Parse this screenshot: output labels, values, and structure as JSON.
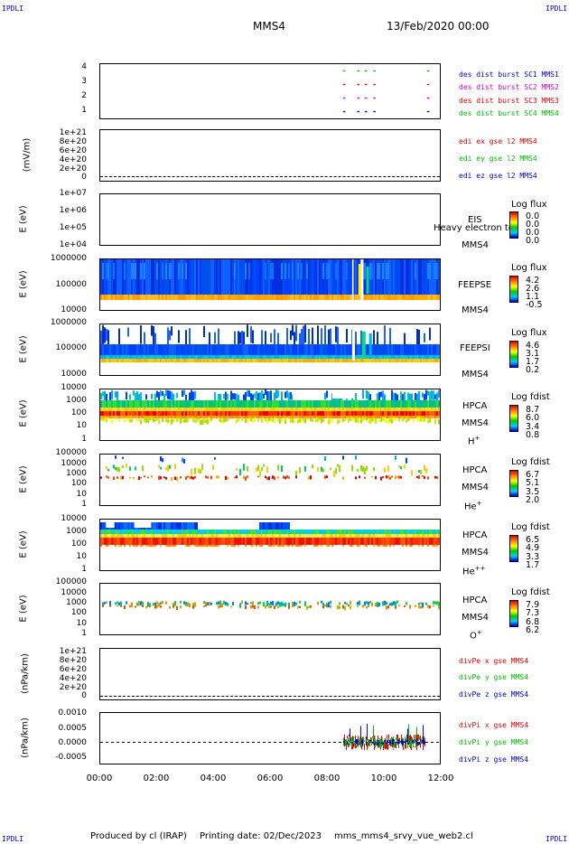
{
  "corners": {
    "tl": "IPDLI",
    "tr": "IPDLI",
    "bl": "IPDLI",
    "br": "IPDLI"
  },
  "header": {
    "spacecraft": "MMS4",
    "date": "13/Feb/2020 00:00"
  },
  "footer": {
    "producer": "Produced by cl (IRAP)",
    "printing": "Printing date: 02/Dec/2023",
    "script": "mms_mms4_srvy_vue_web2.cl"
  },
  "time_axis": {
    "ticks": [
      "00:00",
      "02:00",
      "04:00",
      "06:00",
      "08:00",
      "10:00",
      "12:00"
    ]
  },
  "colors": {
    "red": "#dd0000",
    "green": "#00bb00",
    "blue": "#0000cc",
    "magenta": "#cc00cc"
  },
  "chart_data": [
    {
      "type": "scatter",
      "name": "burst",
      "ylim": [
        0.5,
        4.5
      ],
      "yticks": [
        "4",
        "3",
        "2",
        "1"
      ],
      "legend": [
        {
          "text": "des dist burst SC1 MMS1",
          "color": "#0000cc"
        },
        {
          "text": "des dist burst SC2 MMS2",
          "color": "#cc00cc"
        },
        {
          "text": "des dist burst SC3 MMS3",
          "color": "#dd0000"
        },
        {
          "text": "des dist burst SC4 MMS4",
          "color": "#00bb00"
        }
      ],
      "series": [
        {
          "sc": 4,
          "color": "#00bb00",
          "x": [
            8.58,
            9.08,
            9.35,
            9.65,
            11.55
          ]
        },
        {
          "sc": 3,
          "color": "#dd0000",
          "x": [
            8.58,
            9.08,
            9.35,
            9.65,
            11.55
          ]
        },
        {
          "sc": 2,
          "color": "#cc00cc",
          "x": [
            8.58,
            9.08,
            9.35,
            9.65,
            11.55
          ]
        },
        {
          "sc": 1,
          "color": "#0000cc",
          "x": [
            8.58,
            9.08,
            9.35,
            9.65,
            11.55
          ]
        }
      ]
    },
    {
      "type": "line",
      "name": "edi",
      "ylabel": "(mV/m)",
      "yticks": [
        "1e+21",
        "8e+20",
        "6e+20",
        "4e+20",
        "2e+20",
        "0"
      ],
      "legend": [
        {
          "text": "edi ex gse l2 MMS4",
          "color": "#dd0000"
        },
        {
          "text": "edi ey gse l2 MMS4",
          "color": "#00bb00"
        },
        {
          "text": "edi ez gse l2 MMS4",
          "color": "#0000cc"
        }
      ]
    },
    {
      "type": "heatmap",
      "name": "eis",
      "ylabel": "E (eV)",
      "yticks": [
        "1e+07",
        "1e+06",
        "1e+05",
        "1e+04"
      ],
      "instrument": "EIS",
      "overlay": "Heavy electron to",
      "sc": "MMS4",
      "cbtitle": "Log flux",
      "cb": [
        "0.0",
        "0.0",
        "0.0",
        "0.0"
      ]
    },
    {
      "type": "heatmap",
      "name": "feepse",
      "ylabel": "E (eV)",
      "yticks": [
        "1000000",
        "100000",
        "10000"
      ],
      "instrument": "FEEPSE",
      "sc": "MMS4",
      "cbtitle": "Log flux",
      "cb": [
        "4.2",
        "2.6",
        "1.1",
        "-0.5"
      ]
    },
    {
      "type": "heatmap",
      "name": "feepsi",
      "ylabel": "E (eV)",
      "yticks": [
        "1000000",
        "100000",
        "10000"
      ],
      "instrument": "FEEPSI",
      "sc": "MMS4",
      "cbtitle": "Log flux",
      "cb": [
        "4.6",
        "3.1",
        "1.7",
        "0.2"
      ]
    },
    {
      "type": "heatmap",
      "name": "hpca-h",
      "ylabel": "E (eV)",
      "yticks": [
        "10000",
        "1000",
        "100",
        "10",
        "1"
      ],
      "instrument": "HPCA",
      "sc": "MMS4",
      "species": "H",
      "charge": "+",
      "cbtitle": "Log fdist",
      "cb": [
        "8.7",
        "6.0",
        "3.4",
        "0.8"
      ]
    },
    {
      "type": "heatmap",
      "name": "hpca-he",
      "ylabel": "E (eV)",
      "yticks": [
        "100000",
        "10000",
        "1000",
        "100",
        "10",
        "1"
      ],
      "instrument": "HPCA",
      "sc": "MMS4",
      "species": "He",
      "charge": "+",
      "cbtitle": "Log fdist",
      "cb": [
        "6.7",
        "5.1",
        "3.5",
        "2.0"
      ]
    },
    {
      "type": "heatmap",
      "name": "hpca-he2",
      "ylabel": "E (eV)",
      "yticks": [
        "10000",
        "1000",
        "100",
        "10",
        "1"
      ],
      "instrument": "HPCA",
      "sc": "MMS4",
      "species": "He",
      "charge": "++",
      "cbtitle": "Log fdist",
      "cb": [
        "6.5",
        "4.9",
        "3.3",
        "1.7"
      ]
    },
    {
      "type": "heatmap",
      "name": "hpca-o",
      "ylabel": "E (eV)",
      "yticks": [
        "100000",
        "10000",
        "1000",
        "100",
        "10",
        "1"
      ],
      "instrument": "HPCA",
      "sc": "MMS4",
      "species": "O",
      "charge": "+",
      "cbtitle": "Log fdist",
      "cb": [
        "7.9",
        "7.3",
        "6.8",
        "6.2"
      ]
    },
    {
      "type": "line",
      "name": "divpe",
      "ylabel": "(nPa/km)",
      "yticks": [
        "1e+21",
        "8e+20",
        "6e+20",
        "4e+20",
        "2e+20",
        "0"
      ],
      "legend": [
        {
          "text": "divPe x gse MMS4",
          "color": "#dd0000"
        },
        {
          "text": "divPe y gse MMS4",
          "color": "#00bb00"
        },
        {
          "text": "divPe z gse MMS4",
          "color": "#0000cc"
        }
      ]
    },
    {
      "type": "line",
      "name": "divpi",
      "ylabel": "(nPa/km)",
      "ylim": [
        -0.0008,
        0.0011
      ],
      "yticks": [
        "0.0010",
        "0.0005",
        "0.0000",
        "-0.0005"
      ],
      "xrange": [
        8.6,
        11.5
      ],
      "legend": [
        {
          "text": "divPi x gse MMS4",
          "color": "#dd0000"
        },
        {
          "text": "divPi y gse MMS4",
          "color": "#00bb00"
        },
        {
          "text": "divPi z gse MMS4",
          "color": "#0000cc"
        }
      ]
    }
  ]
}
